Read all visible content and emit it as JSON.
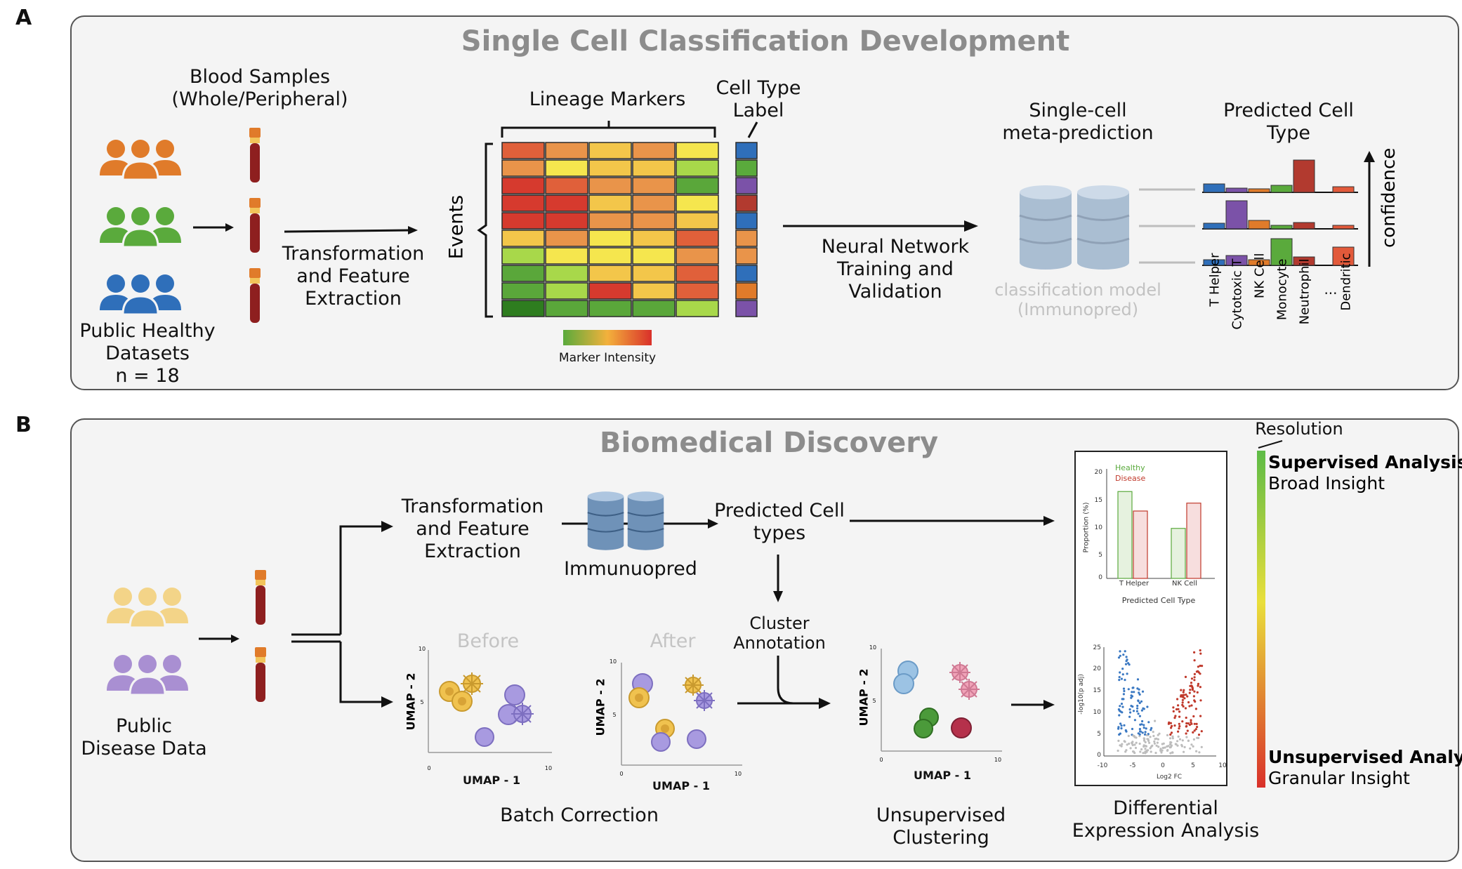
{
  "panel_a": {
    "letter": "A",
    "title": "Single Cell Classification Development",
    "blood_samples": "Blood Samples\n(Whole/Peripheral)",
    "public_healthy": "Public Healthy\nDatasets\nn = 18",
    "transformation": "Transformation\nand Feature\nExtraction",
    "lineage_markers": "Lineage Markers",
    "cell_type_label": "Cell Type\nLabel",
    "events": "Events",
    "marker_intensity": "Marker Intensity",
    "neural_network": "Neural Network\nTraining and\nValidation",
    "meta_prediction": "Single-cell\nmeta-prediction",
    "classification_model": "classification model\n(Immunopred)",
    "predicted_cell_type": "Predicted Cell\nType",
    "confidence": "confidence",
    "cell_types": [
      "T Helper",
      "Cytotoxic T",
      "NK Cell",
      "Monocyte",
      "Neutrophil",
      "...",
      "Dendritic"
    ]
  },
  "panel_b": {
    "letter": "B",
    "title": "Biomedical Discovery",
    "public_disease": "Public\nDisease Data",
    "transformation": "Transformation\nand Feature\nExtraction",
    "immunopred": "Immunuopred",
    "predicted_cell_types": "Predicted Cell\ntypes",
    "cluster_annotation": "Cluster\nAnnotation",
    "before": "Before",
    "after": "After",
    "umap1": "UMAP - 1",
    "umap2": "UMAP - 2",
    "batch_correction": "Batch Correction",
    "unsupervised_clustering": "Unsupervised\nClustering",
    "differential_expression": "Differential\nExpression Analysis",
    "resolution": "Resolution",
    "supervised": "Supervised Analysis",
    "broad": "Broad Insight",
    "unsupervised": "Unsupervised Analysis",
    "granular": "Granular Insight",
    "bar_legend_healthy": "Healthy",
    "bar_legend_disease": "Disease",
    "bar_ylabel": "Proportion (%)",
    "bar_xlabel": "Predicted Cell Type",
    "bar_categories": [
      "T Helper",
      "NK Cell"
    ],
    "bar_yticks": [
      "20",
      "15",
      "10",
      "5",
      "0"
    ],
    "volcano_xlabel": "Log2 FC",
    "volcano_ylabel": "-log10(p adj)",
    "volcano_xticks": [
      "-10",
      "-5",
      "0",
      "5",
      "10"
    ],
    "volcano_yticks": [
      "25",
      "20",
      "15",
      "10",
      "5",
      "0"
    ],
    "umap_tick_10": "10",
    "umap_tick_5": "5",
    "umap_tick_0": "0"
  },
  "colors": {
    "orange": "#e07b2a",
    "green": "#5aaa3c",
    "blue": "#2f6fba",
    "light_yellow": "#f3d488",
    "purple": "#a98fd2",
    "healthy": "#5aaa3c",
    "disease": "#c0392b"
  },
  "chart_data": [
    {
      "type": "bar",
      "categories": [
        "T Helper",
        "NK Cell"
      ],
      "series": [
        {
          "name": "Healthy",
          "values": [
            16.5,
            9.5
          ]
        },
        {
          "name": "Disease",
          "values": [
            12.8,
            14.3
          ]
        }
      ],
      "xlabel": "Predicted Cell Type",
      "ylabel": "Proportion (%)",
      "ylim": [
        0,
        20
      ]
    }
  ]
}
